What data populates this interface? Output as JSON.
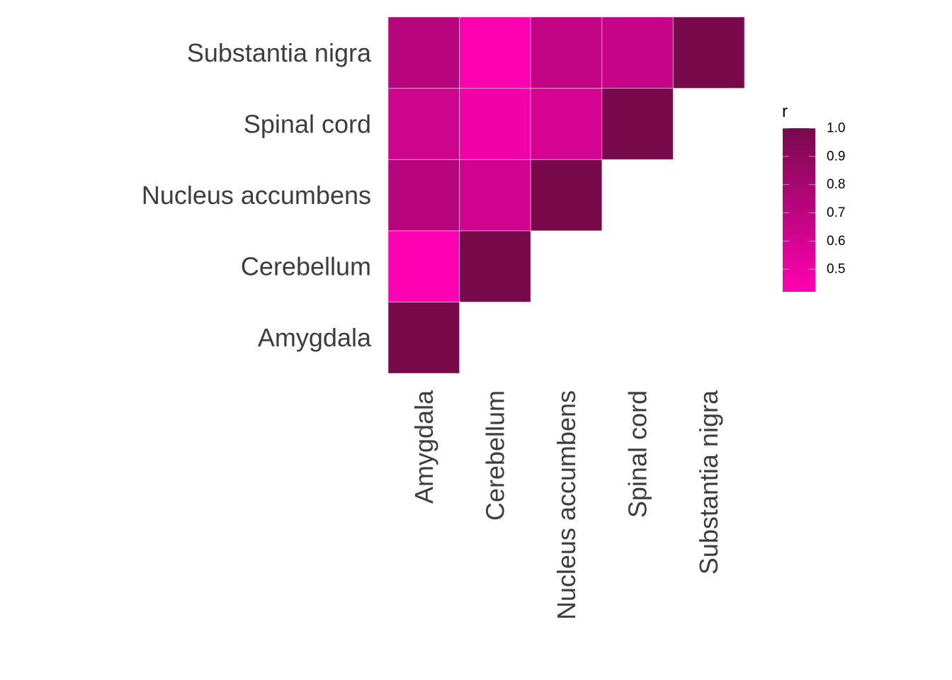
{
  "chart_data": {
    "type": "heatmap",
    "x_categories": [
      "Amygdala",
      "Cerebellum",
      "Nucleus accumbens",
      "Spinal cord",
      "Substantia nigra"
    ],
    "y_categories": [
      "Amygdala",
      "Cerebellum",
      "Nucleus accumbens",
      "Spinal cord",
      "Substantia nigra"
    ],
    "cells": [
      {
        "x": "Amygdala",
        "y": "Amygdala",
        "value": 1.0
      },
      {
        "x": "Amygdala",
        "y": "Cerebellum",
        "value": 0.42
      },
      {
        "x": "Cerebellum",
        "y": "Cerebellum",
        "value": 1.0
      },
      {
        "x": "Amygdala",
        "y": "Nucleus accumbens",
        "value": 0.72
      },
      {
        "x": "Cerebellum",
        "y": "Nucleus accumbens",
        "value": 0.62
      },
      {
        "x": "Nucleus accumbens",
        "y": "Nucleus accumbens",
        "value": 1.0
      },
      {
        "x": "Amygdala",
        "y": "Spinal cord",
        "value": 0.63
      },
      {
        "x": "Cerebellum",
        "y": "Spinal cord",
        "value": 0.48
      },
      {
        "x": "Nucleus accumbens",
        "y": "Spinal cord",
        "value": 0.6
      },
      {
        "x": "Spinal cord",
        "y": "Spinal cord",
        "value": 1.0
      },
      {
        "x": "Amygdala",
        "y": "Substantia nigra",
        "value": 0.72
      },
      {
        "x": "Cerebellum",
        "y": "Substantia nigra",
        "value": 0.43
      },
      {
        "x": "Nucleus accumbens",
        "y": "Substantia nigra",
        "value": 0.68
      },
      {
        "x": "Spinal cord",
        "y": "Substantia nigra",
        "value": 0.66
      },
      {
        "x": "Substantia nigra",
        "y": "Substantia nigra",
        "value": 1.0
      }
    ],
    "legend": {
      "title": "r",
      "ticks": [
        "0.5",
        "0.6",
        "0.7",
        "0.8",
        "0.9",
        "1.0"
      ],
      "range": [
        0.42,
        1.0
      ],
      "low_color": "#ff00b2",
      "high_color": "#780a4c",
      "placement": "right"
    },
    "grid": false
  }
}
